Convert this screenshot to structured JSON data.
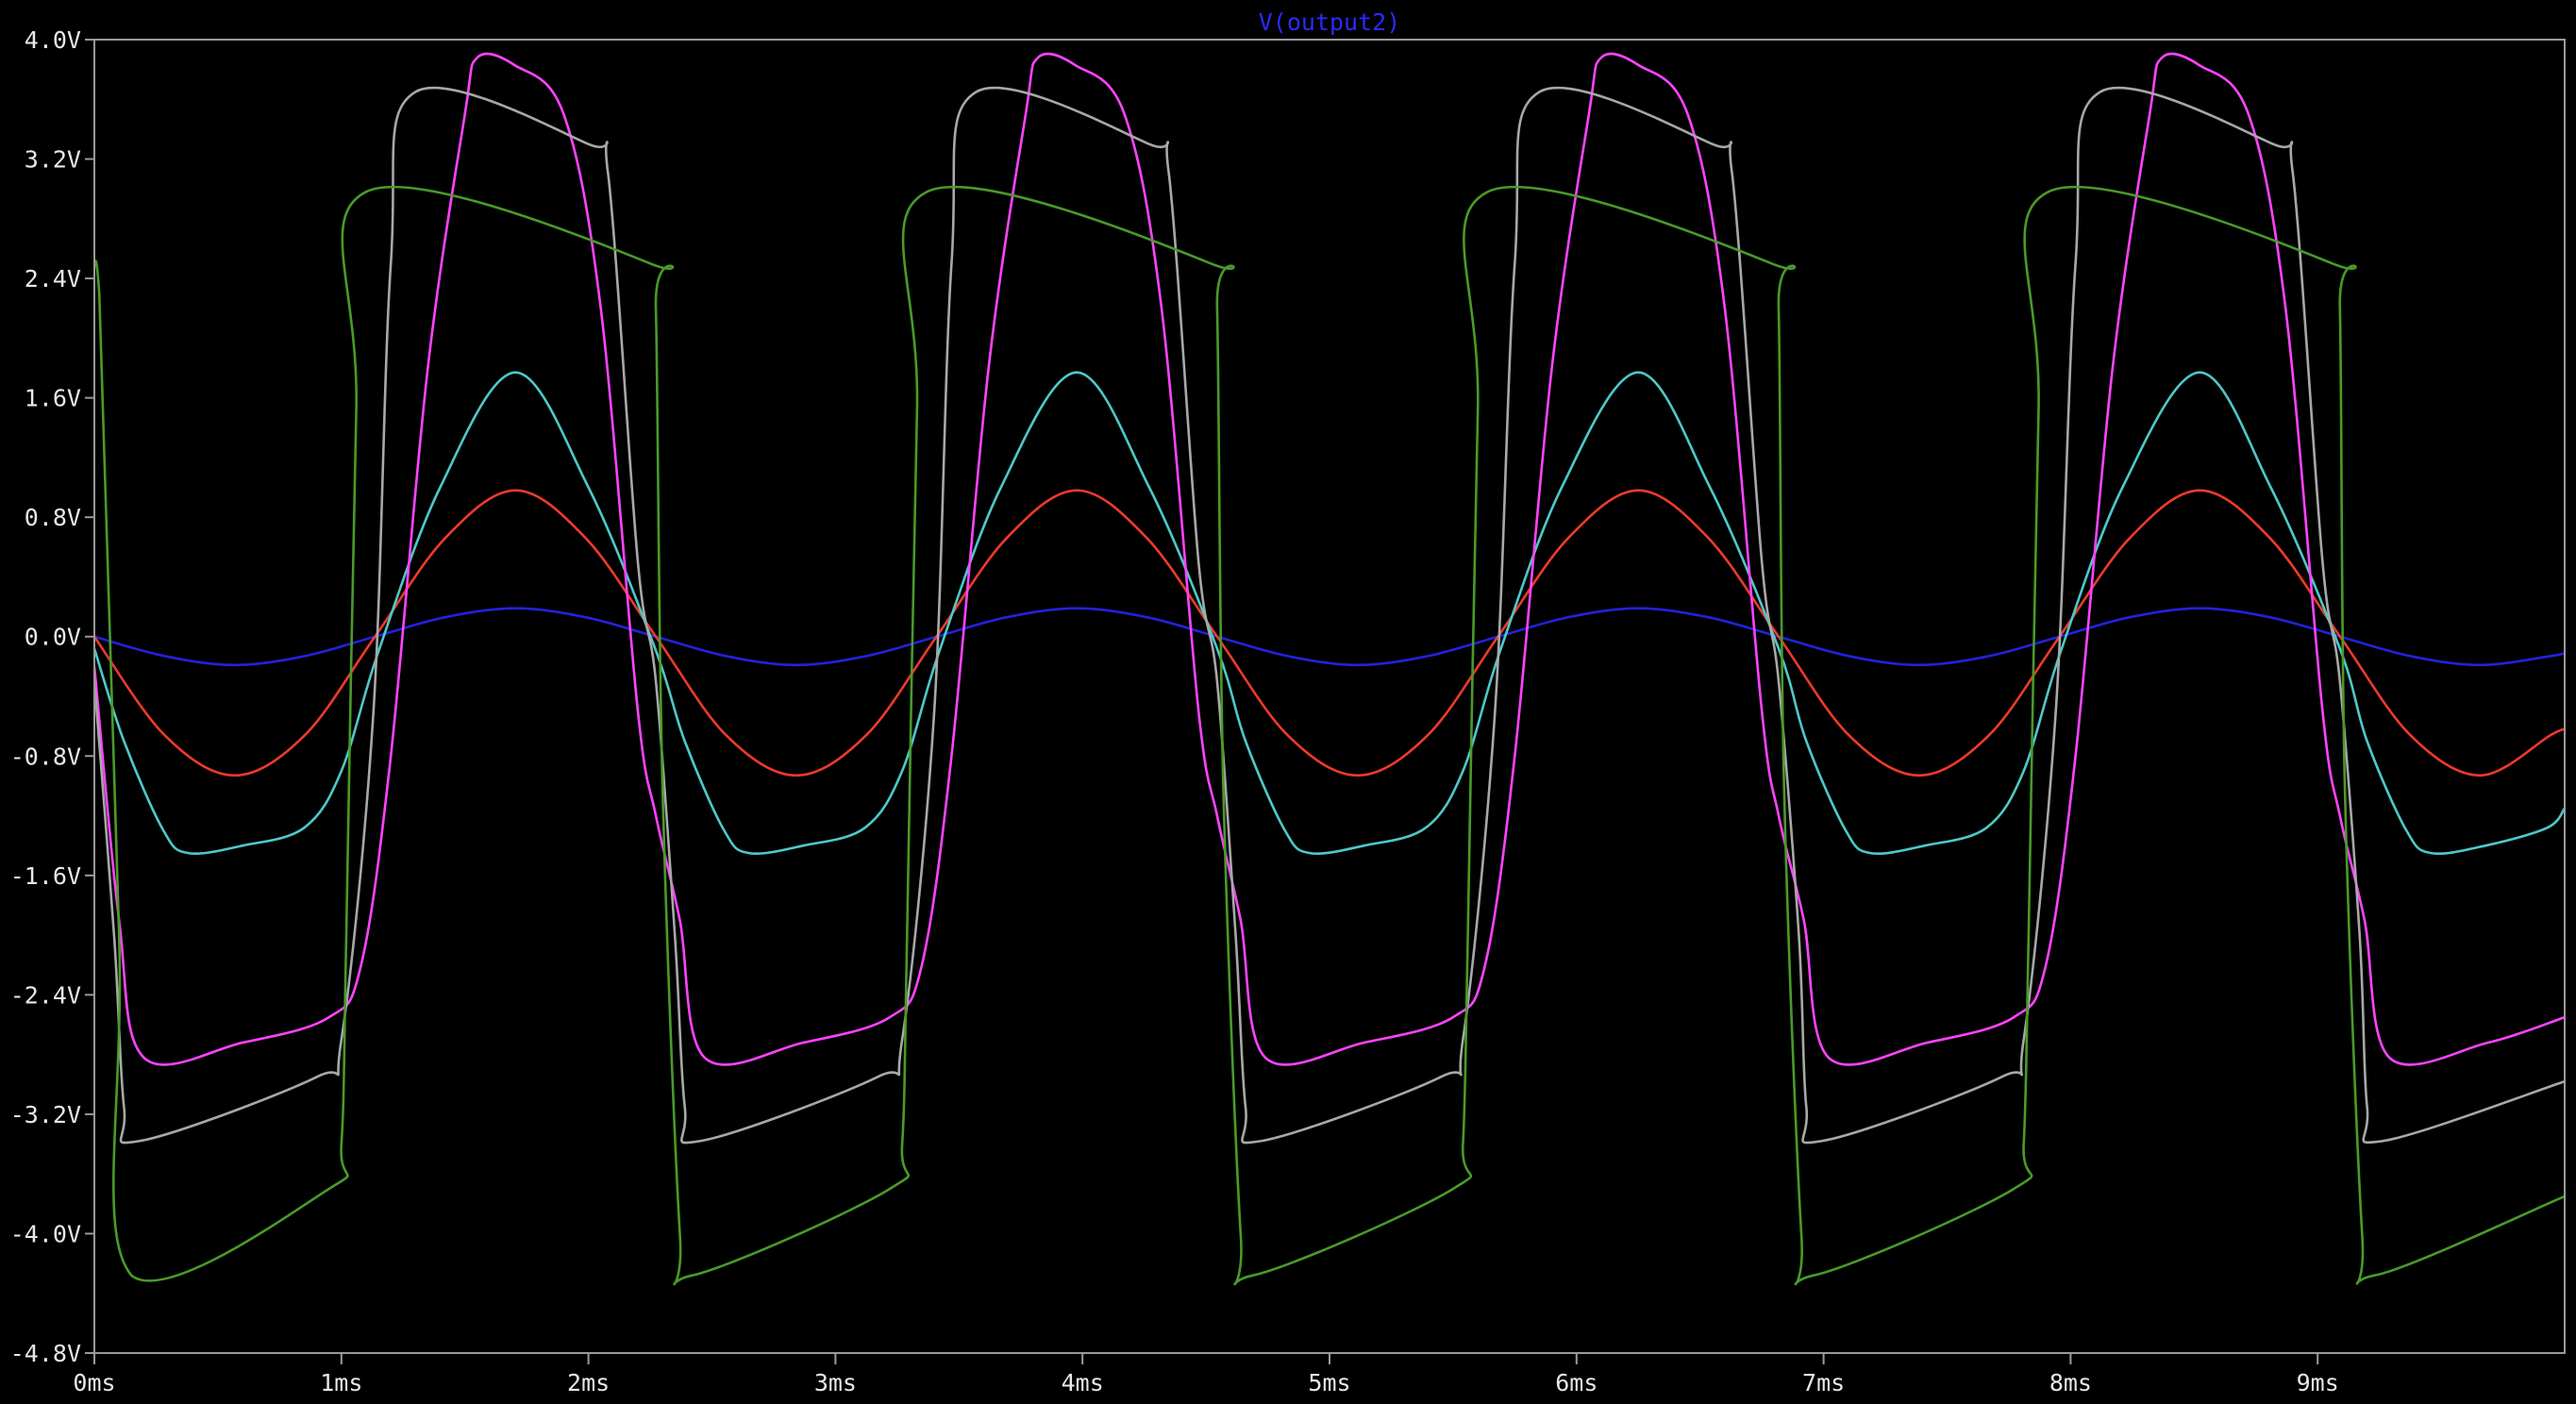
{
  "chart_data": {
    "type": "line",
    "title": "V(output2)",
    "xlabel": "",
    "ylabel": "",
    "xlim": [
      0,
      10
    ],
    "ylim": [
      -4.8,
      4.0
    ],
    "x_ticks": [
      0,
      1,
      2,
      3,
      4,
      5,
      6,
      7,
      8,
      9
    ],
    "x_tick_labels": [
      "0ms",
      "1ms",
      "2ms",
      "3ms",
      "4ms",
      "5ms",
      "6ms",
      "7ms",
      "8ms",
      "9ms"
    ],
    "y_ticks": [
      4.0,
      3.2,
      2.4,
      1.6,
      0.8,
      0.0,
      -0.8,
      -1.6,
      -2.4,
      -3.2,
      -4.0,
      -4.8
    ],
    "y_tick_labels": [
      "4.0V",
      "3.2V",
      "2.4V",
      "1.6V",
      "0.8V",
      "0.0V",
      "-0.8V",
      "-1.6V",
      "-2.4V",
      "-3.2V",
      "-4.0V",
      "-4.8V"
    ],
    "grid": false,
    "background": "#000000",
    "axis_color": "#9a9a9a",
    "title_color": "#2a2aff",
    "period_ms": 2.2727,
    "series": [
      {
        "color": "#2222dd",
        "x": [
          0,
          0.284,
          0.568,
          0.852,
          1.136,
          1.42,
          1.705,
          1.989,
          2.273,
          2.557,
          2.841,
          3.125,
          3.409,
          3.693,
          3.977,
          4.261,
          4.545,
          4.83,
          5.114,
          5.398,
          5.682,
          5.966,
          6.25,
          6.534,
          6.818,
          7.102,
          7.386,
          7.67,
          7.955,
          8.239,
          8.523,
          8.807,
          9.091,
          9.375,
          9.659,
          9.943,
          10.0
        ],
        "y": [
          0.0,
          -0.13,
          -0.19,
          -0.13,
          0.0,
          0.13,
          0.19,
          0.13,
          0.0,
          -0.13,
          -0.19,
          -0.13,
          0.0,
          0.13,
          0.19,
          0.13,
          0.0,
          -0.13,
          -0.19,
          -0.13,
          0.0,
          0.13,
          0.19,
          0.13,
          0.0,
          -0.13,
          -0.19,
          -0.13,
          0.0,
          0.13,
          0.19,
          0.13,
          0.0,
          -0.13,
          -0.19,
          -0.13,
          -0.11
        ]
      },
      {
        "color": "#ee3a2a",
        "x": [
          0,
          0.284,
          0.568,
          0.852,
          1.136,
          1.42,
          1.705,
          1.989,
          2.273,
          2.557,
          2.841,
          3.125,
          3.409,
          3.693,
          3.977,
          4.261,
          4.545,
          4.83,
          5.114,
          5.398,
          5.682,
          5.966,
          6.25,
          6.534,
          6.818,
          7.102,
          7.386,
          7.67,
          7.955,
          8.239,
          8.523,
          8.807,
          9.091,
          9.375,
          9.659,
          9.943,
          10.0
        ],
        "y": [
          0.0,
          -0.66,
          -0.93,
          -0.66,
          0.0,
          0.66,
          0.98,
          0.66,
          0.0,
          -0.66,
          -0.93,
          -0.66,
          0.0,
          0.66,
          0.98,
          0.66,
          0.0,
          -0.66,
          -0.93,
          -0.66,
          0.0,
          0.66,
          0.98,
          0.66,
          0.0,
          -0.66,
          -0.93,
          -0.66,
          0.0,
          0.66,
          0.98,
          0.66,
          0.0,
          -0.66,
          -0.93,
          -0.66,
          -0.62
        ]
      },
      {
        "color": "#4ec9c9",
        "x": [
          0,
          0.12,
          0.28,
          0.38,
          0.6,
          0.85,
          1.0,
          1.15,
          1.4,
          1.705,
          2.0,
          2.27,
          2.39,
          2.55,
          2.65,
          2.87,
          3.12,
          3.27,
          3.42,
          3.67,
          3.977,
          4.27,
          4.545,
          4.66,
          4.82,
          4.92,
          5.14,
          5.39,
          5.54,
          5.69,
          5.94,
          6.25,
          6.54,
          6.818,
          6.93,
          7.09,
          7.19,
          7.41,
          7.66,
          7.81,
          7.96,
          8.21,
          8.523,
          8.81,
          9.09,
          9.2,
          9.36,
          9.46,
          9.68,
          9.93,
          10.0
        ],
        "y": [
          -0.08,
          -0.7,
          -1.3,
          -1.45,
          -1.4,
          -1.28,
          -0.9,
          -0.1,
          1.0,
          1.77,
          1.0,
          -0.08,
          -0.7,
          -1.3,
          -1.45,
          -1.4,
          -1.28,
          -0.9,
          -0.1,
          1.0,
          1.77,
          1.0,
          -0.08,
          -0.7,
          -1.3,
          -1.45,
          -1.4,
          -1.28,
          -0.9,
          -0.1,
          1.0,
          1.77,
          1.0,
          -0.08,
          -0.7,
          -1.3,
          -1.45,
          -1.4,
          -1.28,
          -0.9,
          -0.1,
          1.0,
          1.77,
          1.0,
          -0.08,
          -0.7,
          -1.3,
          -1.45,
          -1.4,
          -1.28,
          -1.15
        ]
      },
      {
        "color": "#ff44ff",
        "x": [
          0,
          0.1,
          0.2,
          0.6,
          0.95,
          1.08,
          1.2,
          1.35,
          1.5,
          1.55,
          1.7,
          1.9,
          2.05,
          2.2,
          2.273,
          2.37,
          2.47,
          2.87,
          3.22,
          3.35,
          3.47,
          3.62,
          3.77,
          3.82,
          3.97,
          4.17,
          4.32,
          4.47,
          4.545,
          4.64,
          4.74,
          5.14,
          5.5,
          5.63,
          5.75,
          5.9,
          6.05,
          6.1,
          6.25,
          6.45,
          6.6,
          6.75,
          6.818,
          6.92,
          7.02,
          7.42,
          7.77,
          7.9,
          8.02,
          8.17,
          8.32,
          8.37,
          8.52,
          8.72,
          8.87,
          9.02,
          9.09,
          9.19,
          9.29,
          9.69,
          10.0
        ],
        "y": [
          -0.2,
          -1.9,
          -2.82,
          -2.72,
          -2.55,
          -2.2,
          -0.8,
          1.8,
          3.5,
          3.88,
          3.83,
          3.5,
          2.2,
          -0.5,
          -1.2,
          -1.9,
          -2.82,
          -2.72,
          -2.55,
          -2.2,
          -0.8,
          1.8,
          3.5,
          3.88,
          3.83,
          3.5,
          2.2,
          -0.5,
          -1.2,
          -1.9,
          -2.82,
          -2.72,
          -2.55,
          -2.2,
          -0.8,
          1.8,
          3.5,
          3.88,
          3.83,
          3.5,
          2.2,
          -0.5,
          -1.2,
          -1.9,
          -2.82,
          -2.72,
          -2.55,
          -2.2,
          -0.8,
          1.8,
          3.5,
          3.88,
          3.83,
          3.5,
          2.2,
          -0.5,
          -1.2,
          -1.9,
          -2.82,
          -2.72,
          -2.55
        ]
      },
      {
        "color": "#a8a8a8",
        "x": [
          0,
          0.08,
          0.12,
          0.18,
          0.9,
          1.0,
          1.13,
          1.2,
          1.3,
          2.0,
          2.08,
          2.2,
          2.273,
          2.35,
          2.39,
          2.45,
          3.17,
          3.27,
          3.4,
          3.47,
          3.57,
          4.27,
          4.35,
          4.47,
          4.545,
          4.62,
          4.66,
          4.72,
          5.45,
          5.54,
          5.67,
          5.75,
          5.85,
          6.55,
          6.63,
          6.75,
          6.818,
          6.9,
          6.93,
          6.99,
          7.72,
          7.81,
          7.94,
          8.02,
          8.12,
          8.82,
          8.9,
          9.02,
          9.09,
          9.17,
          9.2,
          9.26,
          10.0
        ],
        "y": [
          -0.3,
          -2.0,
          -3.15,
          -3.38,
          -2.95,
          -2.7,
          -0.5,
          2.5,
          3.65,
          3.3,
          3.1,
          0.5,
          -0.3,
          -2.0,
          -3.15,
          -3.38,
          -2.95,
          -2.7,
          -0.5,
          2.5,
          3.65,
          3.3,
          3.1,
          0.5,
          -0.3,
          -2.0,
          -3.15,
          -3.38,
          -2.95,
          -2.7,
          -0.5,
          2.5,
          3.65,
          3.3,
          3.1,
          0.5,
          -0.3,
          -2.0,
          -3.15,
          -3.38,
          -2.95,
          -2.7,
          -0.5,
          2.5,
          3.65,
          3.3,
          3.1,
          0.5,
          -0.3,
          -2.0,
          -3.15,
          -3.38,
          -2.98
        ]
      },
      {
        "color": "#4a9a2a",
        "x": [
          0,
          0.02,
          0.1,
          0.15,
          0.95,
          1.0,
          1.02,
          1.06,
          1.1,
          2.25,
          2.273,
          2.3,
          2.37,
          2.42,
          3.22,
          3.27,
          3.29,
          3.33,
          3.37,
          4.52,
          4.545,
          4.57,
          4.64,
          4.69,
          5.5,
          5.54,
          5.56,
          5.6,
          5.64,
          6.79,
          6.818,
          6.84,
          6.91,
          6.96,
          7.77,
          7.81,
          7.83,
          7.87,
          7.91,
          9.06,
          9.09,
          9.11,
          9.18,
          9.23,
          10.0
        ],
        "y": [
          2.48,
          2.3,
          -2.0,
          -4.28,
          -3.7,
          -3.4,
          -2.0,
          1.5,
          2.98,
          2.5,
          2.2,
          -1.0,
          -4.0,
          -4.28,
          -3.7,
          -3.4,
          -2.0,
          1.5,
          2.98,
          2.5,
          2.2,
          -1.0,
          -4.0,
          -4.28,
          -3.7,
          -3.4,
          -2.0,
          1.5,
          2.98,
          2.5,
          2.2,
          -1.0,
          -4.0,
          -4.28,
          -3.7,
          -3.4,
          -2.0,
          1.5,
          2.98,
          2.5,
          2.2,
          -1.0,
          -4.0,
          -4.28,
          -3.75
        ]
      }
    ]
  }
}
